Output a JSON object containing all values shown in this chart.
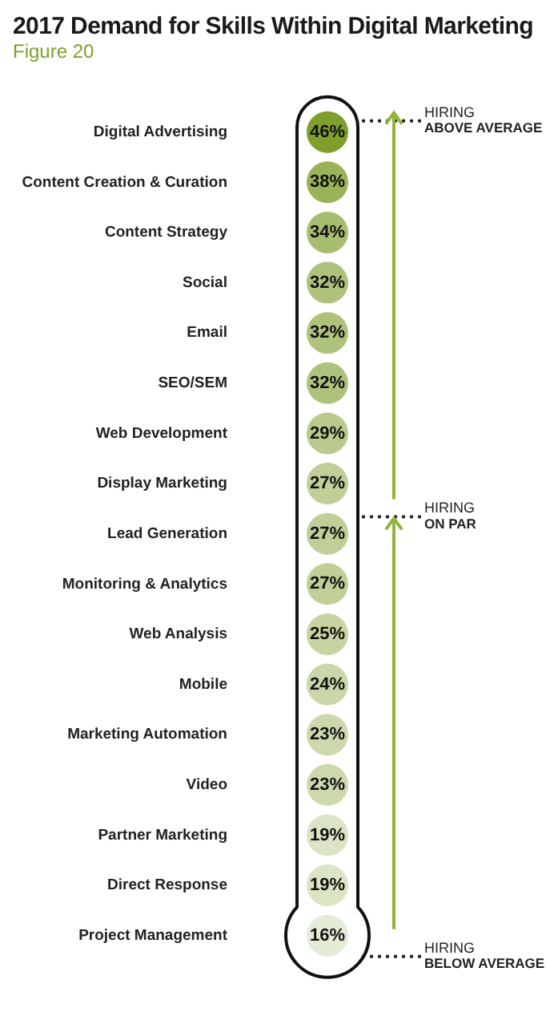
{
  "chart_data": {
    "type": "other",
    "title": "2017 Demand for Skills Within Digital Marketing",
    "subtitle": "Figure 20",
    "categories": [
      "Digital Advertising",
      "Content Creation & Curation",
      "Content Strategy",
      "Social",
      "Email",
      "SEO/SEM",
      "Web Development",
      "Display Marketing",
      "Lead Generation",
      "Monitoring & Analytics",
      "Web Analysis",
      "Mobile",
      "Marketing Automation",
      "Video",
      "Partner Marketing",
      "Direct Response",
      "Project Management"
    ],
    "values": [
      46,
      38,
      34,
      32,
      32,
      32,
      29,
      27,
      27,
      27,
      25,
      24,
      23,
      23,
      19,
      19,
      16
    ],
    "color": "#7f9e2c",
    "value_labels": [
      "46%",
      "38%",
      "34%",
      "32%",
      "32%",
      "32%",
      "29%",
      "27%",
      "27%",
      "27%",
      "25%",
      "24%",
      "23%",
      "23%",
      "19%",
      "19%",
      "16%"
    ],
    "annotations": [
      "HIRING ABOVE AVERAGE",
      "HIRING ON PAR",
      "HIRING BELOW AVERAGE"
    ]
  }
}
